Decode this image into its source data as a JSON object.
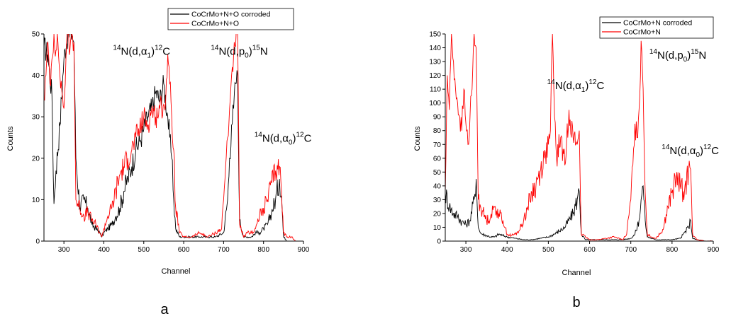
{
  "chart_data": [
    {
      "type": "line",
      "panel_label": "a",
      "xlabel": "Channel",
      "ylabel": "Counts",
      "xlim": [
        250,
        900
      ],
      "ylim": [
        0,
        50
      ],
      "xticks": [
        300,
        400,
        500,
        600,
        700,
        800,
        900
      ],
      "yticks": [
        0,
        10,
        20,
        30,
        40,
        50
      ],
      "legend_position": "top-right",
      "annotations": [
        {
          "mass": "14",
          "pre": "N(d,",
          "greek": "α",
          "sub": "1",
          "post": ")",
          "mass2": "12",
          "end": "C",
          "x": 423,
          "y": 45
        },
        {
          "mass": "14",
          "pre": "N(d,p",
          "greek": "",
          "sub": "0",
          "post": ")",
          "mass2": "15",
          "end": "N",
          "x": 668,
          "y": 45
        },
        {
          "mass": "14",
          "pre": "N(d,",
          "greek": "α",
          "sub": "0",
          "post": ")",
          "mass2": "12",
          "end": "C",
          "x": 777,
          "y": 24
        }
      ],
      "series": [
        {
          "name": "CoCrMo+N+O corroded",
          "color": "#000000",
          "x": [
            250,
            260,
            270,
            275,
            280,
            290,
            300,
            310,
            320,
            325,
            330,
            340,
            350,
            360,
            370,
            380,
            390,
            395,
            400,
            410,
            420,
            430,
            440,
            450,
            460,
            470,
            480,
            490,
            500,
            510,
            520,
            530,
            540,
            550,
            560,
            565,
            570,
            575,
            580,
            590,
            600,
            620,
            640,
            660,
            680,
            700,
            710,
            715,
            720,
            725,
            730,
            735,
            740,
            750,
            760,
            770,
            780,
            790,
            800,
            810,
            820,
            830,
            840,
            845,
            850,
            860
          ],
          "y": [
            47,
            45,
            35,
            9,
            17,
            28,
            44,
            50,
            50,
            48,
            20,
            8,
            10,
            8,
            4,
            3,
            2,
            1,
            2,
            3,
            4,
            6,
            8,
            12,
            15,
            18,
            22,
            24,
            27,
            30,
            32,
            36,
            34,
            38,
            30,
            25,
            20,
            10,
            3,
            1,
            1,
            1,
            1,
            1,
            1,
            2,
            10,
            20,
            28,
            32,
            38,
            40,
            5,
            1,
            1,
            1,
            2,
            2,
            3,
            4,
            7,
            10,
            15,
            11,
            1,
            0
          ]
        },
        {
          "name": "CoCrMo+N+O",
          "color": "#ff0000",
          "x": [
            250,
            255,
            260,
            265,
            270,
            275,
            280,
            285,
            290,
            295,
            300,
            305,
            310,
            315,
            320,
            325,
            330,
            340,
            350,
            360,
            370,
            380,
            390,
            395,
            400,
            410,
            420,
            430,
            440,
            450,
            460,
            470,
            480,
            490,
            500,
            510,
            520,
            530,
            540,
            550,
            555,
            560,
            565,
            570,
            575,
            580,
            590,
            600,
            620,
            640,
            660,
            680,
            695,
            700,
            705,
            710,
            715,
            720,
            725,
            730,
            735,
            740,
            750,
            760,
            770,
            780,
            790,
            800,
            810,
            820,
            830,
            840,
            845,
            850,
            860,
            870,
            880
          ],
          "y": [
            34,
            40,
            48,
            38,
            44,
            50,
            46,
            48,
            40,
            36,
            32,
            44,
            50,
            46,
            50,
            48,
            10,
            8,
            6,
            7,
            5,
            4,
            2,
            1,
            3,
            6,
            8,
            12,
            16,
            18,
            20,
            22,
            25,
            27,
            30,
            28,
            32,
            30,
            32,
            33,
            34,
            45,
            38,
            30,
            22,
            8,
            2,
            1,
            1,
            2,
            1,
            2,
            3,
            10,
            18,
            25,
            32,
            40,
            45,
            47,
            50,
            4,
            1,
            2,
            2,
            3,
            6,
            8,
            10,
            14,
            17,
            18,
            12,
            2,
            1,
            1,
            0
          ]
        }
      ]
    },
    {
      "type": "line",
      "panel_label": "b",
      "xlabel": "Channel",
      "ylabel": "Counts",
      "xlim": [
        250,
        900
      ],
      "ylim": [
        0,
        150
      ],
      "xticks": [
        300,
        400,
        500,
        600,
        700,
        800,
        900
      ],
      "yticks": [
        0,
        10,
        20,
        30,
        40,
        50,
        60,
        70,
        80,
        90,
        100,
        110,
        120,
        130,
        140,
        150
      ],
      "legend_position": "top-right",
      "annotations": [
        {
          "mass": "14",
          "pre": "N(d,",
          "greek": "α",
          "sub": "1",
          "post": ")",
          "mass2": "12",
          "end": "C",
          "x": 497,
          "y": 110
        },
        {
          "mass": "14",
          "pre": "N(d,p",
          "greek": "",
          "sub": "0",
          "post": ")",
          "mass2": "15",
          "end": "N",
          "x": 745,
          "y": 132
        },
        {
          "mass": "14",
          "pre": "N(d,",
          "greek": "α",
          "sub": "0",
          "post": ")",
          "mass2": "12",
          "end": "C",
          "x": 775,
          "y": 63
        }
      ],
      "series": [
        {
          "name": "CoCrMo+N corroded",
          "color": "#000000",
          "x": [
            250,
            260,
            270,
            280,
            290,
            300,
            310,
            320,
            325,
            330,
            335,
            340,
            350,
            360,
            370,
            380,
            390,
            400,
            420,
            440,
            460,
            480,
            500,
            520,
            540,
            560,
            570,
            575,
            580,
            590,
            600,
            620,
            640,
            660,
            680,
            700,
            710,
            720,
            725,
            730,
            735,
            740,
            760,
            780,
            800,
            820,
            840,
            845,
            850,
            860,
            880,
            900
          ],
          "y": [
            35,
            25,
            20,
            18,
            14,
            12,
            15,
            30,
            45,
            10,
            6,
            5,
            4,
            3,
            3,
            5,
            4,
            3,
            2,
            1,
            1,
            2,
            3,
            6,
            10,
            20,
            30,
            36,
            5,
            1,
            1,
            1,
            1,
            1,
            1,
            2,
            5,
            15,
            30,
            40,
            15,
            3,
            1,
            1,
            1,
            2,
            10,
            15,
            2,
            1,
            0,
            0
          ]
        },
        {
          "name": "CoCrMo+N",
          "color": "#ff0000",
          "x": [
            250,
            255,
            260,
            265,
            270,
            275,
            280,
            285,
            290,
            295,
            300,
            305,
            310,
            315,
            320,
            325,
            330,
            340,
            350,
            360,
            370,
            380,
            390,
            400,
            410,
            420,
            430,
            440,
            450,
            460,
            470,
            480,
            490,
            500,
            505,
            510,
            515,
            520,
            530,
            540,
            550,
            560,
            570,
            575,
            580,
            590,
            600,
            620,
            640,
            660,
            680,
            690,
            700,
            705,
            710,
            715,
            720,
            725,
            730,
            735,
            740,
            750,
            760,
            770,
            780,
            790,
            800,
            810,
            820,
            830,
            840,
            845,
            850,
            860,
            880,
            900
          ],
          "y": [
            35,
            120,
            95,
            150,
            130,
            110,
            100,
            90,
            80,
            110,
            85,
            70,
            90,
            110,
            150,
            140,
            30,
            22,
            15,
            18,
            25,
            20,
            15,
            5,
            4,
            5,
            8,
            15,
            25,
            35,
            40,
            50,
            60,
            70,
            80,
            150,
            90,
            60,
            75,
            55,
            95,
            75,
            70,
            80,
            5,
            3,
            1,
            1,
            2,
            3,
            1,
            5,
            30,
            55,
            85,
            75,
            95,
            145,
            110,
            35,
            5,
            3,
            2,
            5,
            10,
            25,
            35,
            45,
            40,
            35,
            50,
            52,
            5,
            1,
            0,
            0
          ]
        }
      ]
    }
  ]
}
